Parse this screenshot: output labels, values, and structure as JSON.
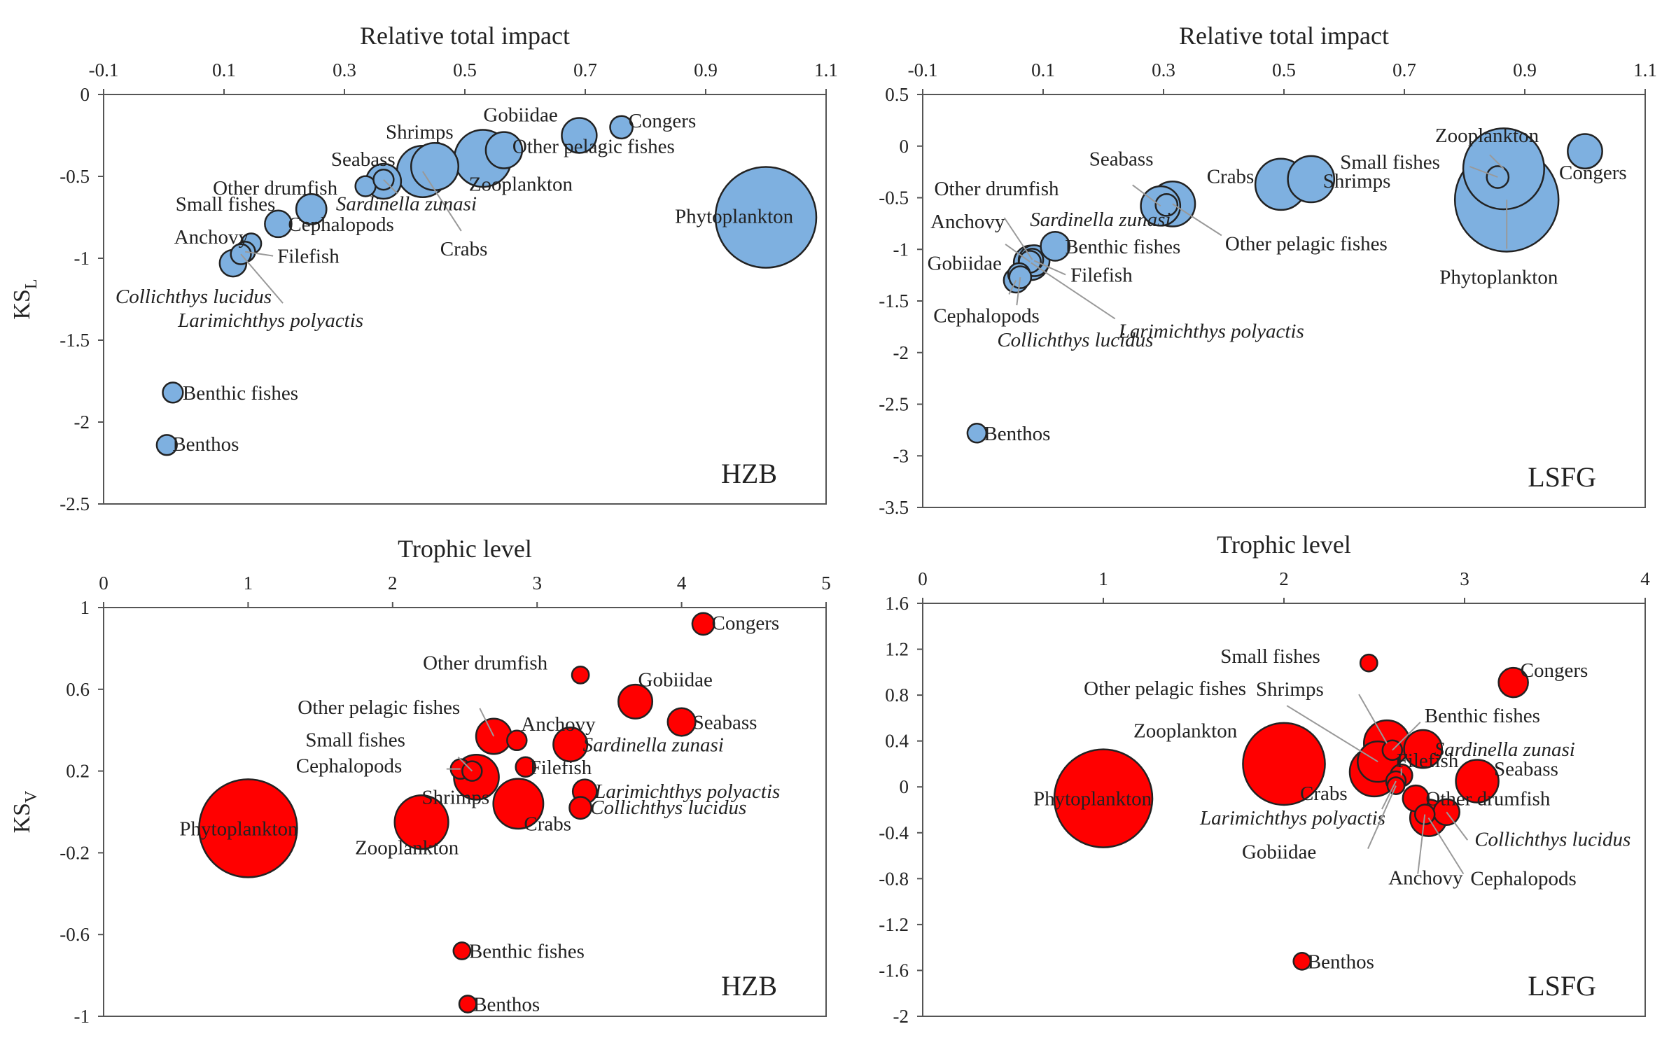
{
  "chart_data": [
    {
      "type": "scatter",
      "region": "HZB",
      "xlabel": "Relative total impact",
      "ylabel": "KS",
      "ylabel_sub": "L",
      "xlim": [
        -0.1,
        1.1
      ],
      "ylim": [
        -2.5,
        0
      ],
      "xticks": [
        "-0.1",
        "0.1",
        "0.3",
        "0.5",
        "0.7",
        "0.9",
        "1.1"
      ],
      "yticks": [
        "0",
        "-0.5",
        "-1",
        "-1.5",
        "-2",
        "-2.5"
      ],
      "color": "#7eb0e0",
      "points": [
        {
          "name": "Phytoplankton",
          "x": 1.0,
          "y": -0.75,
          "size": 1.0
        },
        {
          "name": "Congers",
          "x": 0.76,
          "y": -0.2,
          "size": 0.05
        },
        {
          "name": "Gobiidae",
          "x": 0.69,
          "y": -0.25,
          "size": 0.12
        },
        {
          "name": "Other pelagic fishes",
          "x": 0.565,
          "y": -0.34,
          "size": 0.13
        },
        {
          "name": "Zooplankton",
          "x": 0.53,
          "y": -0.39,
          "size": 0.32
        },
        {
          "name": "Shrimps",
          "x": 0.45,
          "y": -0.44,
          "size": 0.22
        },
        {
          "name": "Crabs",
          "x": 0.43,
          "y": -0.47,
          "size": 0.26
        },
        {
          "name": "Seabass",
          "x": 0.365,
          "y": -0.53,
          "size": 0.12
        },
        {
          "name": "Other drumfish",
          "x": 0.335,
          "y": -0.56,
          "size": 0.04
        },
        {
          "name": "Sardinella zunasi",
          "x": 0.365,
          "y": -0.52,
          "size": 0.04
        },
        {
          "name": "Small fishes",
          "x": 0.245,
          "y": -0.7,
          "size": 0.09
        },
        {
          "name": "Cephalopods",
          "x": 0.19,
          "y": -0.79,
          "size": 0.07
        },
        {
          "name": "Anchovy",
          "x": 0.145,
          "y": -0.91,
          "size": 0.04
        },
        {
          "name": "Filefish",
          "x": 0.135,
          "y": -0.96,
          "size": 0.04
        },
        {
          "name": "Larimichthys polyactis",
          "x": 0.128,
          "y": -0.975,
          "size": 0.04
        },
        {
          "name": "Collichthys lucidus",
          "x": 0.115,
          "y": -1.03,
          "size": 0.07
        },
        {
          "name": "Benthic fishes",
          "x": 0.015,
          "y": -1.82,
          "size": 0.04
        },
        {
          "name": "Benthos",
          "x": 0.005,
          "y": -2.14,
          "size": 0.04
        }
      ]
    },
    {
      "type": "scatter",
      "region": "LSFG",
      "xlabel": "Relative total impact",
      "ylabel": "",
      "xlim": [
        -0.1,
        1.1
      ],
      "ylim": [
        -3.5,
        0.5
      ],
      "xticks": [
        "-0.1",
        "0.1",
        "0.3",
        "0.5",
        "0.7",
        "0.9",
        "1.1"
      ],
      "yticks": [
        "0.5",
        "0",
        "-0.5",
        "-1",
        "-1.5",
        "-2",
        "-2.5",
        "-3",
        "-3.5"
      ],
      "color": "#7eb0e0",
      "points": [
        {
          "name": "Phytoplankton",
          "x": 0.87,
          "y": -0.52,
          "size": 0.9
        },
        {
          "name": "Zooplankton",
          "x": 0.865,
          "y": -0.22,
          "size": 0.55
        },
        {
          "name": "Small fishes",
          "x": 0.855,
          "y": -0.3,
          "size": 0.04
        },
        {
          "name": "Congers",
          "x": 1.0,
          "y": -0.05,
          "size": 0.1
        },
        {
          "name": "Shrimps",
          "x": 0.545,
          "y": -0.32,
          "size": 0.18
        },
        {
          "name": "Crabs",
          "x": 0.495,
          "y": -0.37,
          "size": 0.22
        },
        {
          "name": "Other pelagic fishes",
          "x": 0.315,
          "y": -0.56,
          "size": 0.17
        },
        {
          "name": "Seabass",
          "x": 0.295,
          "y": -0.58,
          "size": 0.13
        },
        {
          "name": "Sardinella zunasi",
          "x": 0.305,
          "y": -0.57,
          "size": 0.04
        },
        {
          "name": "Benthic fishes",
          "x": 0.12,
          "y": -0.97,
          "size": 0.07
        },
        {
          "name": "Filefish",
          "x": 0.085,
          "y": -1.11,
          "size": 0.08
        },
        {
          "name": "Larimichthys polyactis",
          "x": 0.08,
          "y": -1.13,
          "size": 0.1
        },
        {
          "name": "Other drumfish",
          "x": 0.082,
          "y": -1.1,
          "size": 0.04
        },
        {
          "name": "Anchovy",
          "x": 0.078,
          "y": -1.12,
          "size": 0.04
        },
        {
          "name": "Gobiidae",
          "x": 0.06,
          "y": -1.24,
          "size": 0.04
        },
        {
          "name": "Cephalopods",
          "x": 0.055,
          "y": -1.3,
          "size": 0.05
        },
        {
          "name": "Collichthys lucidus",
          "x": 0.062,
          "y": -1.27,
          "size": 0.04
        },
        {
          "name": "Benthos",
          "x": -0.01,
          "y": -2.78,
          "size": 0.03
        }
      ]
    },
    {
      "type": "scatter",
      "region": "HZB",
      "xlabel": "Trophic level",
      "ylabel": "KS",
      "ylabel_sub": "V",
      "xlim": [
        0,
        5
      ],
      "ylim": [
        -1,
        1
      ],
      "xticks": [
        "0",
        "1",
        "2",
        "3",
        "4",
        "5"
      ],
      "yticks": [
        "1",
        "0.6",
        "0.2",
        "-0.2",
        "-0.6",
        "-1"
      ],
      "color": "#ff0000",
      "points": [
        {
          "name": "Phytoplankton",
          "x": 1.0,
          "y": -0.08,
          "size": 1.0
        },
        {
          "name": "Zooplankton",
          "x": 2.2,
          "y": -0.05,
          "size": 0.3
        },
        {
          "name": "Crabs",
          "x": 2.87,
          "y": 0.04,
          "size": 0.26
        },
        {
          "name": "Shrimps",
          "x": 2.58,
          "y": 0.17,
          "size": 0.21
        },
        {
          "name": "Cephalopods",
          "x": 2.47,
          "y": 0.21,
          "size": 0.04
        },
        {
          "name": "Other pelagic fishes",
          "x": 2.7,
          "y": 0.37,
          "size": 0.13
        },
        {
          "name": "Small fishes",
          "x": 2.55,
          "y": 0.2,
          "size": 0.04
        },
        {
          "name": "Anchovy",
          "x": 2.86,
          "y": 0.35,
          "size": 0.04
        },
        {
          "name": "Filefish",
          "x": 2.92,
          "y": 0.22,
          "size": 0.04
        },
        {
          "name": "Sardinella zunasi",
          "x": 3.23,
          "y": 0.33,
          "size": 0.12
        },
        {
          "name": "Larimichthys polyactis",
          "x": 3.33,
          "y": 0.1,
          "size": 0.06
        },
        {
          "name": "Collichthys lucidus",
          "x": 3.3,
          "y": 0.02,
          "size": 0.05
        },
        {
          "name": "Other drumfish",
          "x": 3.3,
          "y": 0.67,
          "size": 0.03
        },
        {
          "name": "Gobiidae",
          "x": 3.68,
          "y": 0.54,
          "size": 0.12
        },
        {
          "name": "Seabass",
          "x": 4.0,
          "y": 0.44,
          "size": 0.08
        },
        {
          "name": "Congers",
          "x": 4.15,
          "y": 0.92,
          "size": 0.05
        },
        {
          "name": "Benthic fishes",
          "x": 2.48,
          "y": -0.68,
          "size": 0.03
        },
        {
          "name": "Benthos",
          "x": 2.52,
          "y": -0.94,
          "size": 0.03
        }
      ]
    },
    {
      "type": "scatter",
      "region": "LSFG",
      "xlabel": "Trophic level",
      "ylabel": "",
      "xlim": [
        0,
        4
      ],
      "ylim": [
        -2,
        1.6
      ],
      "xticks": [
        "0",
        "1",
        "2",
        "3",
        "4"
      ],
      "yticks": [
        "1.6",
        "1.2",
        "0.8",
        "0.4",
        "0",
        "-0.4",
        "-0.8",
        "-1.2",
        "-1.6",
        "-2"
      ],
      "color": "#ff0000",
      "points": [
        {
          "name": "Phytoplankton",
          "x": 1.0,
          "y": -0.1,
          "size": 1.0
        },
        {
          "name": "Zooplankton",
          "x": 2.0,
          "y": 0.2,
          "size": 0.7
        },
        {
          "name": "Crabs",
          "x": 2.5,
          "y": 0.13,
          "size": 0.25
        },
        {
          "name": "Other pelagic fishes",
          "x": 2.52,
          "y": 0.22,
          "size": 0.17
        },
        {
          "name": "Shrimps",
          "x": 2.57,
          "y": 0.38,
          "size": 0.22
        },
        {
          "name": "Small fishes",
          "x": 2.47,
          "y": 1.08,
          "size": 0.03
        },
        {
          "name": "Benthic fishes",
          "x": 2.6,
          "y": 0.32,
          "size": 0.04
        },
        {
          "name": "Filefish",
          "x": 2.65,
          "y": 0.1,
          "size": 0.05
        },
        {
          "name": "Larimichthys polyactis",
          "x": 2.62,
          "y": 0.05,
          "size": 0.04
        },
        {
          "name": "Gobiidae",
          "x": 2.62,
          "y": 0.01,
          "size": 0.03
        },
        {
          "name": "Sardinella zunasi",
          "x": 2.77,
          "y": 0.33,
          "size": 0.15
        },
        {
          "name": "Other drumfish",
          "x": 2.73,
          "y": -0.1,
          "size": 0.07
        },
        {
          "name": "Anchovy",
          "x": 2.78,
          "y": -0.24,
          "size": 0.04
        },
        {
          "name": "Cephalopods",
          "x": 2.8,
          "y": -0.27,
          "size": 0.14
        },
        {
          "name": "Collichthys lucidus",
          "x": 2.9,
          "y": -0.22,
          "size": 0.07
        },
        {
          "name": "Seabass",
          "x": 3.07,
          "y": 0.05,
          "size": 0.19
        },
        {
          "name": "Congers",
          "x": 3.27,
          "y": 0.91,
          "size": 0.09
        },
        {
          "name": "Benthos",
          "x": 2.1,
          "y": -1.52,
          "size": 0.03
        }
      ]
    }
  ]
}
